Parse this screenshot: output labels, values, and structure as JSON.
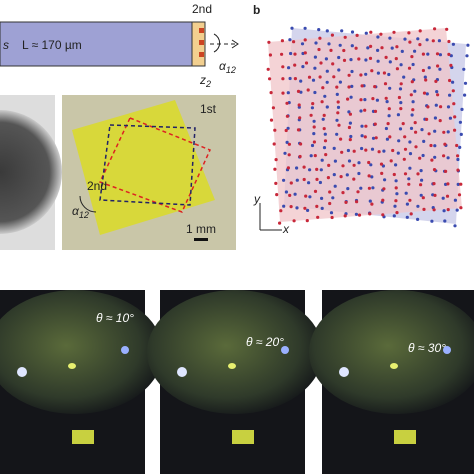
{
  "panel_a": {
    "sample_label": "s",
    "length": "L ≈ 170 µm",
    "layer_label": "2nd",
    "angle": {
      "symbol": "α",
      "subscript": "12"
    },
    "axis": {
      "symbol": "z",
      "subscript": "2"
    }
  },
  "panel_b": {
    "label": "b",
    "y_axis": "y",
    "x_axis": "x"
  },
  "photo": {
    "first_label": "1st",
    "second_label": "2nd",
    "angle": {
      "symbol": "α",
      "subscript": "12"
    },
    "scale_bar": "1 mm"
  },
  "frames": [
    {
      "label": "θ ≈ 10°"
    },
    {
      "label": "θ ≈ 20°"
    },
    {
      "label": "θ ≈ 30°"
    }
  ]
}
